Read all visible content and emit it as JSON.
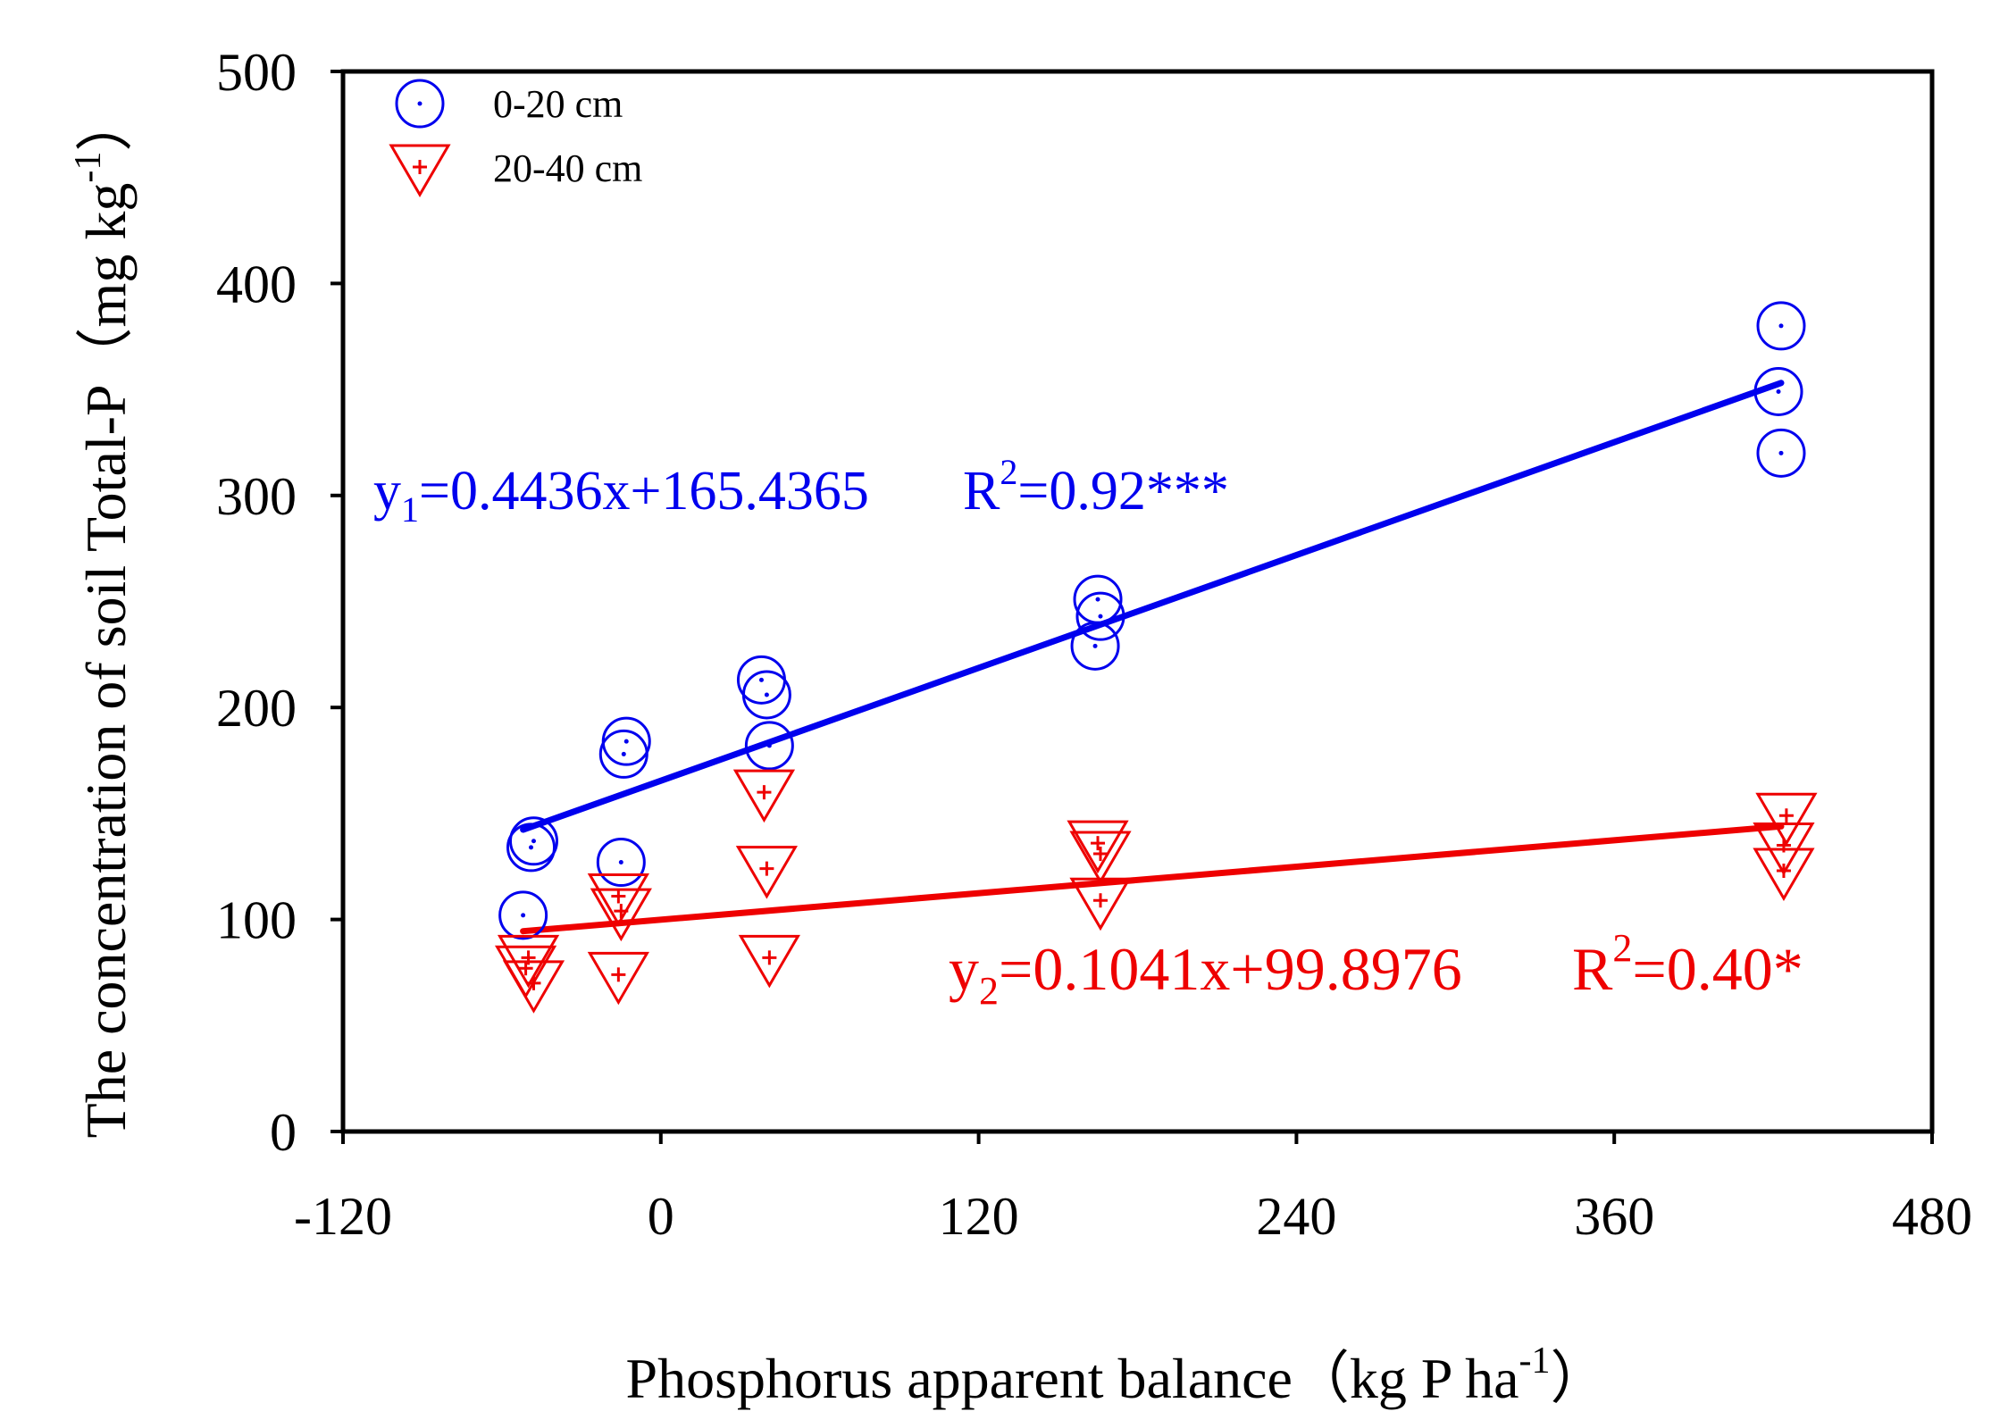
{
  "chart_data": {
    "type": "scatter",
    "xlabel": "Phosphorus apparent balance",
    "xlabel_unit": "（kg P ha",
    "xlabel_unit_sup": "-1",
    "xlabel_unit_close": "）",
    "ylabel": "The concentration of soil Total-P",
    "ylabel_unit": "（mg kg",
    "ylabel_unit_sup": "-1",
    "ylabel_unit_close": "）",
    "xlim": [
      -120,
      480
    ],
    "ylim": [
      0,
      500
    ],
    "x_ticks": [
      -120,
      0,
      120,
      240,
      360,
      480
    ],
    "x_tick_labels": [
      "-120",
      "0",
      "120",
      "240",
      "360",
      "480"
    ],
    "y_ticks": [
      0,
      100,
      200,
      300,
      400,
      500
    ],
    "y_tick_labels": [
      "0",
      "100",
      "200",
      "300",
      "400",
      "500"
    ],
    "legend_position": "top-left",
    "series": [
      {
        "name": "0-20 cm",
        "marker": "circle-dot",
        "color": "#0000ee",
        "points": [
          {
            "x": -52,
            "y": 102
          },
          {
            "x": -48,
            "y": 137
          },
          {
            "x": -49,
            "y": 134
          },
          {
            "x": -15,
            "y": 127
          },
          {
            "x": -14,
            "y": 178
          },
          {
            "x": -13,
            "y": 184
          },
          {
            "x": 38,
            "y": 213
          },
          {
            "x": 40,
            "y": 206
          },
          {
            "x": 41,
            "y": 182
          },
          {
            "x": 165,
            "y": 251
          },
          {
            "x": 166,
            "y": 243
          },
          {
            "x": 164,
            "y": 229
          },
          {
            "x": 423,
            "y": 380
          },
          {
            "x": 422,
            "y": 349
          },
          {
            "x": 423,
            "y": 320
          }
        ],
        "fit": {
          "slope": 0.4436,
          "intercept": 165.4365,
          "x_range": [
            -52,
            423
          ]
        },
        "equation_prefix": "y",
        "equation_sub": "1",
        "equation_body": "=0.4436x+165.4365",
        "r2_prefix": "R",
        "r2_sup": "2",
        "r2_body": "=0.92***"
      },
      {
        "name": "20-40 cm",
        "marker": "triangle-down-plus",
        "color": "#ee0000",
        "points": [
          {
            "x": -50,
            "y": 82
          },
          {
            "x": -51,
            "y": 77
          },
          {
            "x": -48,
            "y": 70
          },
          {
            "x": -16,
            "y": 111
          },
          {
            "x": -15,
            "y": 104
          },
          {
            "x": -16,
            "y": 74
          },
          {
            "x": 39,
            "y": 160
          },
          {
            "x": 40,
            "y": 124
          },
          {
            "x": 41,
            "y": 82
          },
          {
            "x": 165,
            "y": 136
          },
          {
            "x": 166,
            "y": 131
          },
          {
            "x": 166,
            "y": 109
          },
          {
            "x": 425,
            "y": 149
          },
          {
            "x": 424,
            "y": 135
          },
          {
            "x": 424,
            "y": 123
          }
        ],
        "fit": {
          "slope": 0.1041,
          "intercept": 99.8976,
          "x_range": [
            -52,
            423
          ]
        },
        "equation_prefix": "y",
        "equation_sub": "2",
        "equation_body": "=0.1041x+99.8976",
        "r2_prefix": "R",
        "r2_sup": "2",
        "r2_body": "=0.40*"
      }
    ]
  }
}
